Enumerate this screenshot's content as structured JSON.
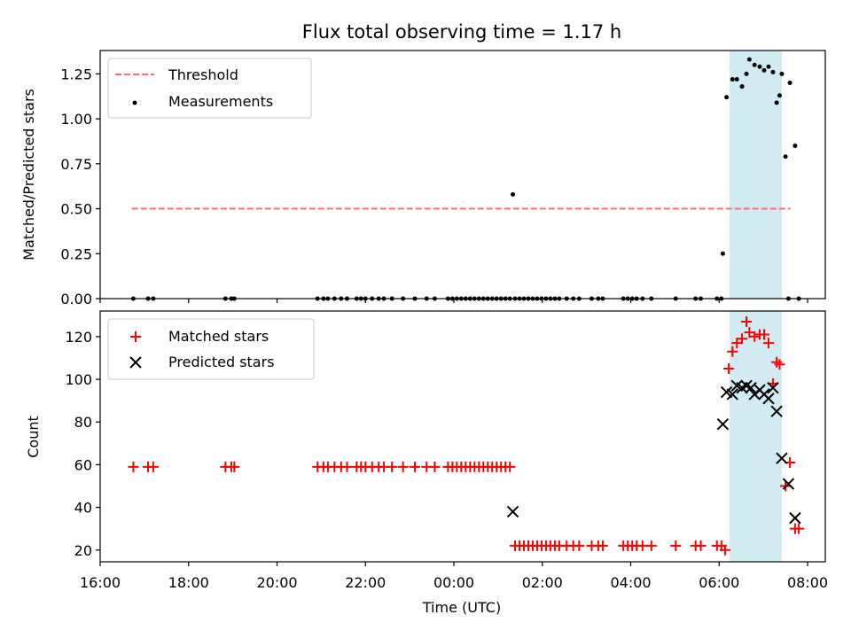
{
  "figure_title": "Flux total observing time = 1.17 h",
  "colors": {
    "threshold": "#ff6f6f",
    "measurement": "#000000",
    "matched": "#ff0000",
    "predicted": "#000000",
    "span": "#add8e6"
  },
  "chart_data": [
    {
      "type": "scatter",
      "panel": "top",
      "ylabel": "Matched/Predicted stars",
      "ylim": [
        0,
        1.38
      ],
      "yticks": [
        "0.00",
        "0.25",
        "0.50",
        "0.75",
        "1.00",
        "1.25"
      ],
      "xlim_hours": [
        16,
        32.4
      ],
      "x_units": "hours since 16:00 UTC on the first day (ticks: 16:00 … 08:00)",
      "shaded_interval": [
        "06:14",
        "07:25"
      ],
      "legend": {
        "placement": "upper-left",
        "entries": [
          "Threshold",
          "Measurements"
        ]
      },
      "threshold": {
        "name": "Threshold",
        "value": 0.5,
        "x_range": [
          "16:43",
          "07:37"
        ]
      },
      "series": [
        {
          "name": "Measurements",
          "points": [
            [
              "16:45",
              0
            ],
            [
              "17:05",
              0
            ],
            [
              "17:12",
              0
            ],
            [
              "18:50",
              0
            ],
            [
              "18:58",
              0
            ],
            [
              "19:02",
              0
            ],
            [
              "20:55",
              0
            ],
            [
              "21:03",
              0
            ],
            [
              "21:09",
              0
            ],
            [
              "21:18",
              0
            ],
            [
              "21:27",
              0
            ],
            [
              "21:35",
              0
            ],
            [
              "21:48",
              0
            ],
            [
              "21:54",
              0
            ],
            [
              "22:00",
              0
            ],
            [
              "22:09",
              0
            ],
            [
              "22:18",
              0
            ],
            [
              "22:25",
              0
            ],
            [
              "22:36",
              0
            ],
            [
              "22:51",
              0
            ],
            [
              "23:07",
              0
            ],
            [
              "23:23",
              0
            ],
            [
              "23:34",
              0
            ],
            [
              "23:52",
              0
            ],
            [
              "23:58",
              0
            ],
            [
              "00:04",
              0
            ],
            [
              "00:10",
              0
            ],
            [
              "00:16",
              0
            ],
            [
              "00:22",
              0
            ],
            [
              "00:28",
              0
            ],
            [
              "00:34",
              0
            ],
            [
              "00:40",
              0
            ],
            [
              "00:46",
              0
            ],
            [
              "00:52",
              0
            ],
            [
              "00:58",
              0
            ],
            [
              "01:04",
              0
            ],
            [
              "01:10",
              0
            ],
            [
              "01:16",
              0
            ],
            [
              "01:20",
              0.58
            ],
            [
              "01:23",
              0
            ],
            [
              "01:29",
              0
            ],
            [
              "01:35",
              0
            ],
            [
              "01:41",
              0
            ],
            [
              "01:47",
              0
            ],
            [
              "01:53",
              0
            ],
            [
              "01:59",
              0
            ],
            [
              "02:05",
              0
            ],
            [
              "02:11",
              0
            ],
            [
              "02:17",
              0
            ],
            [
              "02:23",
              0
            ],
            [
              "02:33",
              0
            ],
            [
              "02:42",
              0
            ],
            [
              "02:50",
              0
            ],
            [
              "03:07",
              0
            ],
            [
              "03:16",
              0
            ],
            [
              "03:22",
              0
            ],
            [
              "03:50",
              0
            ],
            [
              "03:56",
              0
            ],
            [
              "04:02",
              0
            ],
            [
              "04:08",
              0
            ],
            [
              "04:16",
              0
            ],
            [
              "04:28",
              0
            ],
            [
              "05:01",
              0
            ],
            [
              "05:28",
              0
            ],
            [
              "05:35",
              0
            ],
            [
              "05:57",
              0
            ],
            [
              "06:03",
              0
            ],
            [
              "06:05",
              0.25
            ],
            [
              "06:10",
              1.12
            ],
            [
              "06:18",
              1.22
            ],
            [
              "06:24",
              1.22
            ],
            [
              "06:31",
              1.18
            ],
            [
              "06:37",
              1.25
            ],
            [
              "06:41",
              1.33
            ],
            [
              "06:48",
              1.3
            ],
            [
              "06:55",
              1.29
            ],
            [
              "07:01",
              1.27
            ],
            [
              "07:07",
              1.29
            ],
            [
              "07:13",
              1.26
            ],
            [
              "07:18",
              1.09
            ],
            [
              "07:22",
              1.13
            ],
            [
              "07:25",
              1.25
            ],
            [
              "07:30",
              0.79
            ],
            [
              "07:36",
              1.2
            ],
            [
              "07:43",
              0.85
            ],
            [
              "07:34",
              0
            ],
            [
              "07:48",
              0
            ]
          ]
        }
      ]
    },
    {
      "type": "scatter",
      "panel": "bottom",
      "xlabel": "Time (UTC)",
      "ylabel": "Count",
      "ylim": [
        14.5,
        132
      ],
      "yticks": [
        "20",
        "40",
        "60",
        "80",
        "100",
        "120"
      ],
      "xticks": [
        "16:00",
        "18:00",
        "20:00",
        "22:00",
        "00:00",
        "02:00",
        "04:00",
        "06:00",
        "08:00"
      ],
      "xlim_hours": [
        16,
        32.4
      ],
      "shaded_interval": [
        "06:14",
        "07:25"
      ],
      "legend": {
        "placement": "upper-left",
        "entries": [
          "Matched stars",
          "Predicted stars"
        ]
      },
      "series": [
        {
          "name": "Matched stars",
          "marker": "plus",
          "points": [
            [
              "16:45",
              59
            ],
            [
              "17:05",
              59
            ],
            [
              "17:12",
              59
            ],
            [
              "18:50",
              59
            ],
            [
              "18:58",
              59
            ],
            [
              "19:02",
              59
            ],
            [
              "20:55",
              59
            ],
            [
              "21:03",
              59
            ],
            [
              "21:09",
              59
            ],
            [
              "21:18",
              59
            ],
            [
              "21:27",
              59
            ],
            [
              "21:35",
              59
            ],
            [
              "21:48",
              59
            ],
            [
              "21:54",
              59
            ],
            [
              "22:00",
              59
            ],
            [
              "22:09",
              59
            ],
            [
              "22:18",
              59
            ],
            [
              "22:25",
              59
            ],
            [
              "22:36",
              59
            ],
            [
              "22:51",
              59
            ],
            [
              "23:07",
              59
            ],
            [
              "23:23",
              59
            ],
            [
              "23:34",
              59
            ],
            [
              "23:52",
              59
            ],
            [
              "23:58",
              59
            ],
            [
              "00:04",
              59
            ],
            [
              "00:10",
              59
            ],
            [
              "00:16",
              59
            ],
            [
              "00:22",
              59
            ],
            [
              "00:28",
              59
            ],
            [
              "00:34",
              59
            ],
            [
              "00:40",
              59
            ],
            [
              "00:46",
              59
            ],
            [
              "00:52",
              59
            ],
            [
              "00:58",
              59
            ],
            [
              "01:04",
              59
            ],
            [
              "01:10",
              59
            ],
            [
              "01:16",
              59
            ],
            [
              "01:23",
              22
            ],
            [
              "01:29",
              22
            ],
            [
              "01:35",
              22
            ],
            [
              "01:41",
              22
            ],
            [
              "01:47",
              22
            ],
            [
              "01:53",
              22
            ],
            [
              "01:59",
              22
            ],
            [
              "02:05",
              22
            ],
            [
              "02:11",
              22
            ],
            [
              "02:17",
              22
            ],
            [
              "02:23",
              22
            ],
            [
              "02:33",
              22
            ],
            [
              "02:42",
              22
            ],
            [
              "02:50",
              22
            ],
            [
              "03:07",
              22
            ],
            [
              "03:16",
              22
            ],
            [
              "03:22",
              22
            ],
            [
              "03:50",
              22
            ],
            [
              "03:56",
              22
            ],
            [
              "04:02",
              22
            ],
            [
              "04:08",
              22
            ],
            [
              "04:16",
              22
            ],
            [
              "04:28",
              22
            ],
            [
              "05:01",
              22
            ],
            [
              "05:28",
              22
            ],
            [
              "05:35",
              22
            ],
            [
              "05:57",
              22
            ],
            [
              "06:03",
              22
            ],
            [
              "06:08",
              20
            ],
            [
              "06:13",
              105
            ],
            [
              "06:18",
              113
            ],
            [
              "06:24",
              117
            ],
            [
              "06:31",
              119
            ],
            [
              "06:37",
              127
            ],
            [
              "06:41",
              122
            ],
            [
              "06:48",
              120
            ],
            [
              "06:55",
              121
            ],
            [
              "07:01",
              121
            ],
            [
              "07:07",
              117
            ],
            [
              "07:13",
              98
            ],
            [
              "07:18",
              108
            ],
            [
              "07:22",
              107
            ],
            [
              "07:30",
              50
            ],
            [
              "07:36",
              61
            ],
            [
              "07:43",
              30
            ],
            [
              "07:48",
              30
            ]
          ]
        },
        {
          "name": "Predicted stars",
          "marker": "x",
          "points": [
            [
              "01:20",
              38
            ],
            [
              "06:05",
              79
            ],
            [
              "06:10",
              94
            ],
            [
              "06:18",
              93
            ],
            [
              "06:24",
              97
            ],
            [
              "06:31",
              96
            ],
            [
              "06:37",
              97
            ],
            [
              "06:43",
              96
            ],
            [
              "06:48",
              93
            ],
            [
              "06:55",
              95
            ],
            [
              "07:01",
              93
            ],
            [
              "07:07",
              91
            ],
            [
              "07:13",
              96
            ],
            [
              "07:18",
              85
            ],
            [
              "07:25",
              63
            ],
            [
              "07:34",
              51
            ],
            [
              "07:43",
              35
            ]
          ]
        }
      ]
    }
  ]
}
